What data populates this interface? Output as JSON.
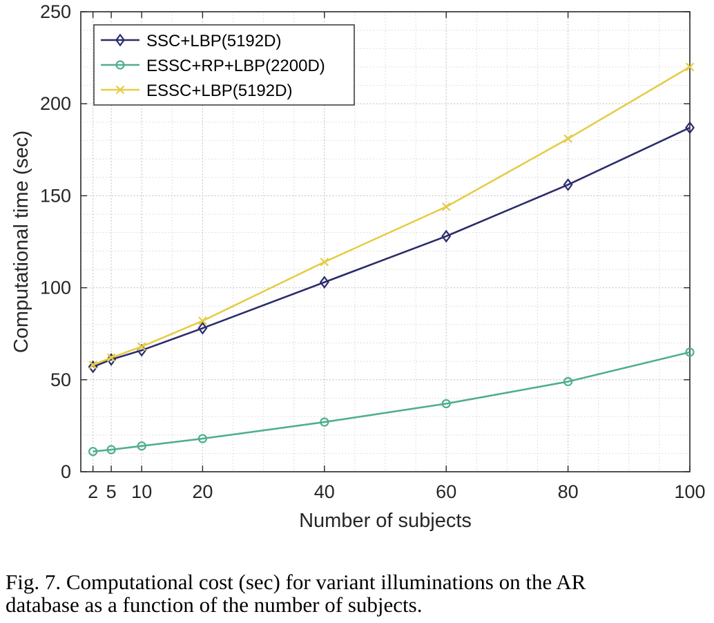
{
  "chart_data": {
    "type": "line",
    "title": "",
    "xlabel": "Number of subjects",
    "ylabel": "Computational time (sec)",
    "xlim": [
      0,
      100
    ],
    "ylim": [
      0,
      250
    ],
    "xticks": [
      2,
      5,
      10,
      20,
      40,
      60,
      80,
      100
    ],
    "xtick_labels": [
      "2",
      "5",
      "10",
      "20",
      "40",
      "60",
      "80",
      "100"
    ],
    "yticks": [
      0,
      50,
      100,
      150,
      200,
      250
    ],
    "ytick_labels": [
      "0",
      "50",
      "100",
      "150",
      "200",
      "250"
    ],
    "grid": true,
    "minor_grid": true,
    "legend_position": "top-left",
    "x": [
      2,
      5,
      10,
      20,
      40,
      60,
      80,
      100
    ],
    "series": [
      {
        "name": "SSC+LBP(5192D)",
        "marker": "diamond",
        "color": "#2b2c6b",
        "values": [
          57,
          61,
          66,
          78,
          103,
          128,
          156,
          187
        ]
      },
      {
        "name": "ESSC+RP+LBP(2200D)",
        "marker": "circle",
        "color": "#4fae91",
        "values": [
          11,
          12,
          14,
          18,
          27,
          37,
          49,
          65
        ]
      },
      {
        "name": "ESSC+LBP(5192D)",
        "marker": "x",
        "color": "#e6cc45",
        "values": [
          58,
          62,
          68,
          82,
          114,
          144,
          181,
          220
        ]
      }
    ]
  },
  "caption": {
    "line1": "Fig. 7. Computational cost (sec) for variant illuminations on the AR",
    "line2": "database as a function of the number of subjects."
  }
}
